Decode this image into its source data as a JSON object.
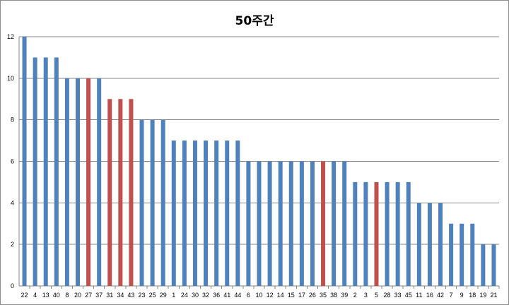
{
  "chart_data": {
    "type": "bar",
    "title": "50주간",
    "xlabel": "",
    "ylabel": "",
    "ylim": [
      0,
      12
    ],
    "yticks": [
      0,
      2,
      4,
      6,
      8,
      10,
      12
    ],
    "grid": true,
    "legend": "none",
    "categories": [
      "22",
      "4",
      "13",
      "40",
      "8",
      "20",
      "27",
      "37",
      "31",
      "34",
      "43",
      "23",
      "25",
      "29",
      "1",
      "24",
      "30",
      "32",
      "36",
      "41",
      "44",
      "6",
      "10",
      "12",
      "14",
      "15",
      "17",
      "26",
      "35",
      "38",
      "39",
      "2",
      "3",
      "5",
      "28",
      "33",
      "45",
      "11",
      "16",
      "42",
      "7",
      "9",
      "18",
      "19",
      "21"
    ],
    "values": [
      12,
      11,
      11,
      11,
      10,
      10,
      10,
      10,
      9,
      9,
      9,
      8,
      8,
      8,
      7,
      7,
      7,
      7,
      7,
      7,
      7,
      6,
      6,
      6,
      6,
      6,
      6,
      6,
      6,
      6,
      6,
      5,
      5,
      5,
      5,
      5,
      5,
      4,
      4,
      4,
      3,
      3,
      3,
      2,
      2
    ],
    "highlighted": [
      "27",
      "31",
      "34",
      "43",
      "35",
      "5"
    ],
    "colors": {
      "bar": "#4f81bd",
      "highlight": "#c0504d",
      "grid": "#868686"
    }
  }
}
